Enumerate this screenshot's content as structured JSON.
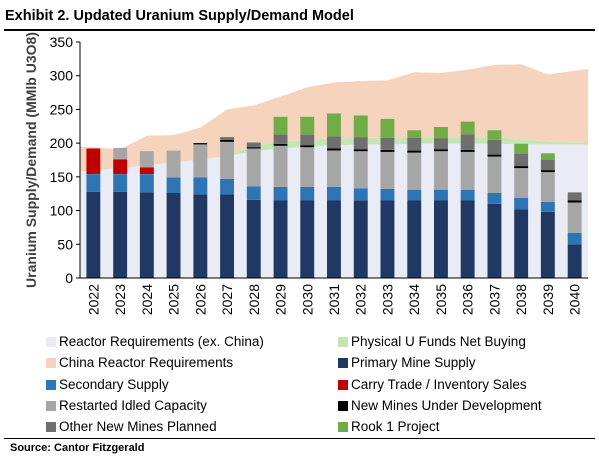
{
  "header": {
    "title": "Exhibit 2. Updated Uranium Supply/Demand Model"
  },
  "footer": {
    "source": "Source: Cantor Fitzgerald"
  },
  "chart_data": {
    "type": "bar",
    "stacked": true,
    "title": "Exhibit 2. Updated Uranium Supply/Demand Model",
    "ylabel": "Uranium Supply/Demand  (MMlb U3O8)",
    "xlabel": "",
    "ylim": [
      0,
      350
    ],
    "yticks": [
      0,
      50,
      100,
      150,
      200,
      250,
      300,
      350
    ],
    "grid": false,
    "legend_position": "bottom",
    "categories": [
      "2022",
      "2023",
      "2024",
      "2025",
      "2026",
      "2027",
      "2028",
      "2029",
      "2030",
      "2031",
      "2032",
      "2033",
      "2034",
      "2035",
      "2036",
      "2037",
      "2038",
      "2039",
      "2040"
    ],
    "areas": [
      {
        "name": "Reactor Requirements (ex. China)",
        "color": "#e9ebf5",
        "values": [
          158,
          163,
          167,
          172,
          175,
          181,
          188,
          192,
          195,
          197,
          198,
          198,
          199,
          199,
          199,
          199,
          198,
          198,
          198
        ]
      },
      {
        "name": "Physical U Funds Net Buying",
        "color": "#c6e5b4",
        "values": [
          0,
          0,
          0,
          0,
          0,
          0,
          8,
          10,
          10,
          10,
          10,
          10,
          10,
          10,
          10,
          10,
          8,
          4,
          3
        ]
      },
      {
        "name": "China Reactor Requirements",
        "color": "#f6d3bc",
        "values": [
          37,
          28,
          44,
          40,
          48,
          69,
          60,
          67,
          78,
          83,
          84,
          85,
          96,
          95,
          100,
          107,
          111,
          100,
          109
        ]
      }
    ],
    "series": [
      {
        "name": "Primary Mine Supply",
        "color": "#203864",
        "values": [
          128,
          128,
          127,
          126,
          124,
          124,
          116,
          115,
          115,
          115,
          115,
          115,
          115,
          115,
          115,
          110,
          102,
          98,
          50
        ]
      },
      {
        "name": "Secondary Supply",
        "color": "#2e75b6",
        "values": [
          26,
          26,
          27,
          23,
          25,
          23,
          20,
          20,
          20,
          20,
          18,
          17,
          16,
          16,
          16,
          16,
          17,
          15,
          17
        ]
      },
      {
        "name": "Carry Trade / Inventory Sales",
        "color": "#c00000",
        "values": [
          38,
          22,
          10,
          0,
          0,
          0,
          0,
          0,
          0,
          0,
          0,
          0,
          0,
          0,
          0,
          0,
          0,
          0,
          0
        ]
      },
      {
        "name": "Restarted Idled Capacity",
        "color": "#a6a6a6",
        "values": [
          0,
          17,
          24,
          40,
          49,
          55,
          56,
          61,
          59,
          54,
          55,
          55,
          55,
          57,
          56,
          54,
          44,
          44,
          45
        ]
      },
      {
        "name": "New Mines Under Development",
        "color": "#000000",
        "values": [
          0,
          0,
          0,
          0,
          2,
          3,
          2,
          3,
          3,
          3,
          3,
          3,
          3,
          3,
          3,
          3,
          3,
          3,
          3
        ]
      },
      {
        "name": "Other New Mines Planned",
        "color": "#6f6f6f",
        "values": [
          0,
          0,
          0,
          0,
          0,
          4,
          7,
          14,
          16,
          18,
          18,
          18,
          19,
          16,
          23,
          22,
          19,
          15,
          12
        ]
      },
      {
        "name": "Rook 1 Project",
        "color": "#70ad47",
        "values": [
          0,
          0,
          0,
          0,
          0,
          0,
          0,
          26,
          26,
          34,
          32,
          28,
          11,
          17,
          19,
          14,
          14,
          10,
          0
        ]
      }
    ],
    "legend": [
      {
        "label": "Reactor Requirements (ex. China)",
        "color": "#e9ebf5"
      },
      {
        "label": "Physical U Funds Net Buying",
        "color": "#c6e5b4"
      },
      {
        "label": "China Reactor Requirements",
        "color": "#f6d3bc"
      },
      {
        "label": "Primary Mine Supply",
        "color": "#203864"
      },
      {
        "label": "Secondary Supply",
        "color": "#2e75b6"
      },
      {
        "label": "Carry Trade / Inventory Sales",
        "color": "#c00000"
      },
      {
        "label": "Restarted Idled Capacity",
        "color": "#a6a6a6"
      },
      {
        "label": "New Mines Under Development",
        "color": "#000000"
      },
      {
        "label": "Other New Mines Planned",
        "color": "#6f6f6f"
      },
      {
        "label": "Rook 1 Project",
        "color": "#70ad47"
      }
    ]
  }
}
